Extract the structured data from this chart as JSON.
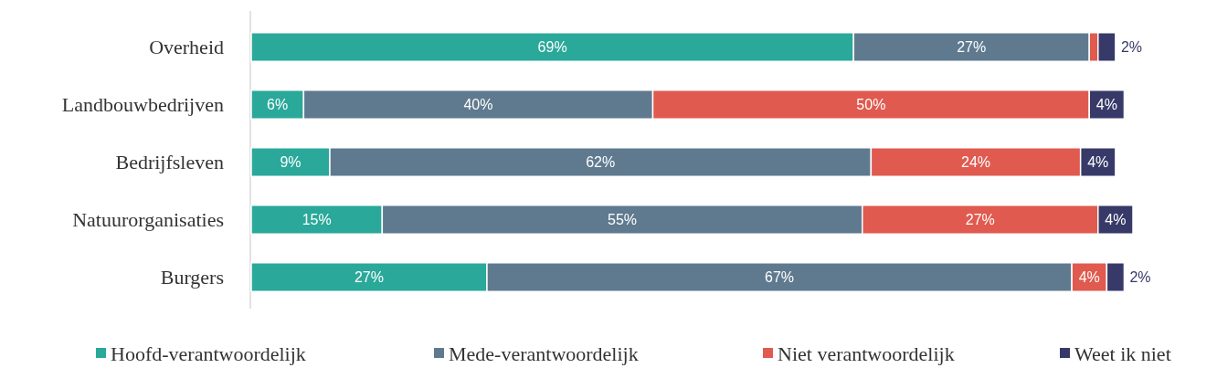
{
  "chart_data": {
    "type": "bar",
    "orientation": "horizontal",
    "stacked": true,
    "categories": [
      "Overheid",
      "Landbouwbedrijven",
      "Bedrijfsleven",
      "Natuurorganisaties",
      "Burgers"
    ],
    "series": [
      {
        "name": "Hoofd-verantwoordelijk",
        "color": "#2aa89a",
        "values": [
          69,
          6,
          9,
          15,
          27
        ],
        "value_labels": [
          "69%",
          "6%",
          "9%",
          "15%",
          "27%"
        ]
      },
      {
        "name": "Mede-verantwoordelijk",
        "color": "#5f7a8f",
        "values": [
          27,
          40,
          62,
          55,
          67
        ],
        "value_labels": [
          "27%",
          "40%",
          "62%",
          "55%",
          "67%"
        ]
      },
      {
        "name": "Niet verantwoordelijk",
        "color": "#e05a4f",
        "values": [
          1,
          50,
          24,
          27,
          4
        ],
        "value_labels": [
          null,
          "50%",
          "24%",
          "27%",
          "4%"
        ]
      },
      {
        "name": "Weet ik niet",
        "color": "#373a68",
        "values": [
          2,
          4,
          4,
          4,
          2
        ],
        "value_labels": [
          "2%",
          "4%",
          "4%",
          "4%",
          "2%"
        ]
      }
    ],
    "legend": "bottom",
    "grid": false
  }
}
